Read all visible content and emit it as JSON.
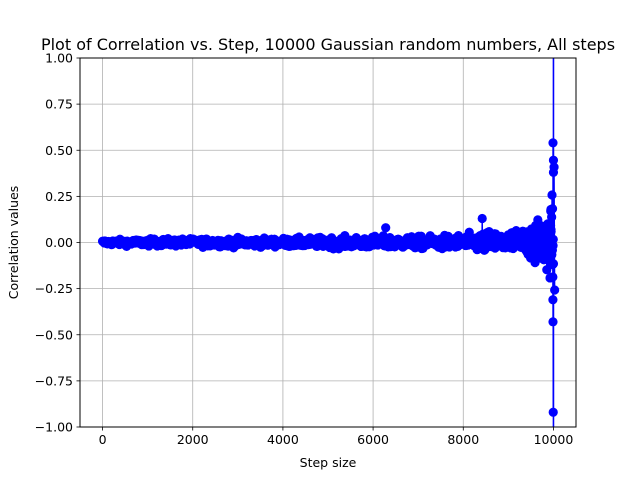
{
  "chart_data": {
    "type": "line",
    "title": "Plot of Correlation vs. Step, 10000 Gaussian random numbers, All steps",
    "xlabel": "Step size",
    "ylabel": "Correlation values",
    "xlim": [
      -500,
      10500
    ],
    "ylim": [
      -1.0,
      1.0
    ],
    "xticks": [
      0,
      2000,
      4000,
      6000,
      8000,
      10000
    ],
    "yticks": [
      -1.0,
      -0.75,
      -0.5,
      -0.25,
      0.0,
      0.25,
      0.5,
      0.75,
      1.0
    ],
    "xtick_labels": [
      "0",
      "2000",
      "4000",
      "6000",
      "8000",
      "10000"
    ],
    "ytick_labels": [
      "−1.00",
      "−0.75",
      "−0.50",
      "−0.25",
      "0.00",
      "0.25",
      "0.50",
      "0.75",
      "1.00"
    ],
    "grid": true,
    "marker": "circle",
    "color": "#0000ff",
    "envelope": {
      "steps": [
        0,
        1000,
        2000,
        3000,
        4000,
        5000,
        6000,
        7000,
        8000,
        8500,
        9000,
        9300,
        9600,
        9800,
        9900,
        9950,
        9980,
        10000
      ],
      "upper": [
        0.03,
        0.04,
        0.04,
        0.045,
        0.05,
        0.055,
        0.07,
        0.07,
        0.09,
        0.13,
        0.14,
        0.17,
        0.2,
        0.28,
        0.32,
        0.38,
        0.54,
        1.0
      ],
      "lower": [
        -0.03,
        -0.04,
        -0.045,
        -0.05,
        -0.05,
        -0.06,
        -0.07,
        -0.07,
        -0.09,
        -0.12,
        -0.13,
        -0.16,
        -0.2,
        -0.26,
        -0.3,
        -0.36,
        -0.43,
        -0.92
      ]
    },
    "notable_points": [
      {
        "x": 9990,
        "y": 0.54
      },
      {
        "x": 10000,
        "y": 0.38
      },
      {
        "x": 9990,
        "y": -0.43
      },
      {
        "x": 9995,
        "y": -0.92
      },
      {
        "x": 8420,
        "y": 0.13
      },
      {
        "x": 6280,
        "y": 0.08
      }
    ]
  }
}
